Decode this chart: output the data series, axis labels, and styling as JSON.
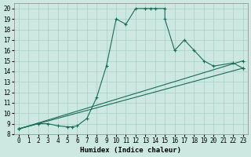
{
  "xlabel": "Humidex (Indice chaleur)",
  "xlim": [
    -0.5,
    23.5
  ],
  "ylim": [
    8,
    20.5
  ],
  "xticks": [
    0,
    1,
    2,
    3,
    4,
    5,
    6,
    7,
    8,
    9,
    10,
    11,
    12,
    13,
    14,
    15,
    16,
    17,
    18,
    19,
    20,
    21,
    22,
    23
  ],
  "yticks": [
    8,
    9,
    10,
    11,
    12,
    13,
    14,
    15,
    16,
    17,
    18,
    19,
    20
  ],
  "bg_color": "#cce8e0",
  "grid_color": "#aacfc8",
  "line_color": "#1a6b5a",
  "series": [
    {
      "x": [
        0,
        2,
        3,
        4,
        5,
        5.5,
        6,
        7,
        8,
        9,
        10,
        11,
        12,
        13,
        13.5,
        14,
        15,
        15,
        16,
        17,
        18,
        19,
        20,
        22,
        23
      ],
      "y": [
        8.5,
        9.0,
        9.0,
        8.8,
        8.7,
        8.7,
        8.8,
        9.5,
        11.5,
        14.5,
        19.0,
        18.5,
        20.0,
        20.0,
        20.0,
        20.0,
        20.0,
        19.0,
        16.0,
        17.0,
        16.0,
        15.0,
        14.5,
        14.8,
        14.3
      ]
    },
    {
      "x": [
        0,
        23
      ],
      "y": [
        8.5,
        15.0
      ]
    },
    {
      "x": [
        0,
        23
      ],
      "y": [
        8.5,
        14.3
      ]
    }
  ]
}
